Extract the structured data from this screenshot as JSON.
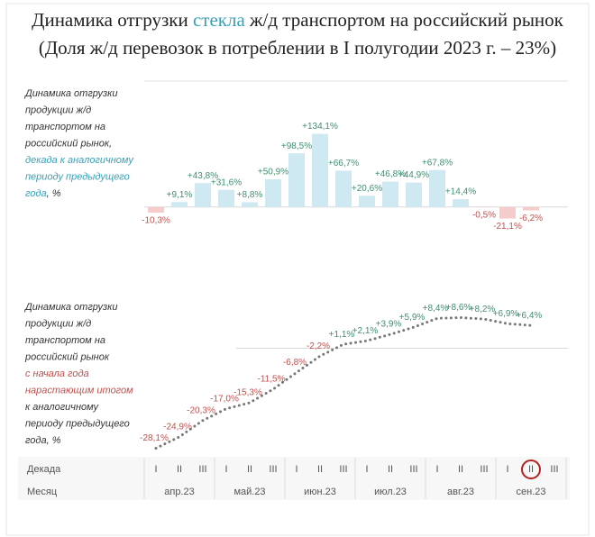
{
  "title_parts": [
    "Динамика отгрузки ",
    "стекла",
    " ж/д транспортом на российский рынок"
  ],
  "title_colors": [
    "#222222",
    "#3a9fb5",
    "#222222"
  ],
  "subtitle": "(Доля ж/д перевозок в потреблении в I полугодии 2023 г. – 23%)",
  "axis": {
    "decade_label": "Декада",
    "month_label": "Месяц",
    "decades": [
      "I",
      "II",
      "III",
      "I",
      "II",
      "III",
      "I",
      "II",
      "III",
      "I",
      "II",
      "III",
      "I",
      "II",
      "III",
      "I",
      "II",
      "III"
    ],
    "months": [
      "апр.23",
      "май.23",
      "июн.23",
      "июл.23",
      "авг.23",
      "сен.23"
    ],
    "highlighted_decade": 16,
    "highlight_color": "#b22222"
  },
  "chart_data": [
    {
      "type": "bar",
      "label_lines": [
        [
          {
            "text": "Динамика отгрузки",
            "color": "#333333"
          }
        ],
        [
          {
            "text": "продукции ж/д",
            "color": "#333333"
          }
        ],
        [
          {
            "text": "транспортом на",
            "color": "#333333"
          }
        ],
        [
          {
            "text": "российский рынок,",
            "color": "#333333"
          }
        ],
        [
          {
            "text": "декада к аналогичному",
            "color": "#3a9fb5"
          }
        ],
        [
          {
            "text": "периоду предыдущего",
            "color": "#3a9fb5"
          }
        ],
        [
          {
            "text": "года",
            "color": "#3a9fb5"
          },
          {
            "text": ", %",
            "color": "#333333"
          }
        ]
      ],
      "values": [
        -10.3,
        9.1,
        43.8,
        31.6,
        8.8,
        50.9,
        98.5,
        134.1,
        66.7,
        20.6,
        46.8,
        44.9,
        67.8,
        14.4,
        -0.5,
        -21.1,
        -6.2,
        null
      ],
      "value_labels": [
        "-10,3%",
        "+9,1%",
        "+43,8%",
        "+31,6%",
        "+8,8%",
        "+50,9%",
        "+98,5%",
        "+134,1%",
        "+66,7%",
        "+20,6%",
        "+46,8%",
        "+44,9%",
        "+67,8%",
        "+14,4%",
        "-0,5%",
        "-21,1%",
        "-6,2%",
        null
      ],
      "ylim": [
        -40,
        140
      ],
      "color": "#cfe9f3",
      "negative_color": "#f5cccc",
      "label_color": "#3f8f6f",
      "negative_label_color": "#c0504d"
    },
    {
      "type": "line",
      "label_lines": [
        [
          {
            "text": "Динамика отгрузки",
            "color": "#333333"
          }
        ],
        [
          {
            "text": "продукции ж/д",
            "color": "#333333"
          }
        ],
        [
          {
            "text": "транспортом на",
            "color": "#333333"
          }
        ],
        [
          {
            "text": "российский рынок",
            "color": "#333333"
          }
        ],
        [
          {
            "text": "с начала года",
            "color": "#c0504d"
          }
        ],
        [
          {
            "text": "нарастающим итогом",
            "color": "#c0504d"
          }
        ],
        [
          {
            "text": "к аналогичному",
            "color": "#333333"
          }
        ],
        [
          {
            "text": "периоду предыдущего",
            "color": "#333333"
          }
        ],
        [
          {
            "text": "года, %",
            "color": "#333333"
          }
        ]
      ],
      "values": [
        -28.1,
        -24.9,
        -20.3,
        -17.0,
        -15.3,
        -11.5,
        -6.8,
        -2.2,
        1.1,
        2.1,
        3.9,
        5.9,
        8.4,
        8.6,
        8.2,
        6.9,
        6.4,
        null
      ],
      "value_labels": [
        "-28,1%",
        "-24,9%",
        "-20,3%",
        "-17,0%",
        "-15,3%",
        "-11,5%",
        "-6,8%",
        "-2,2%",
        "+1,1%",
        "+2,1%",
        "+3,9%",
        "+5,9%",
        "+8,4%",
        "+8,6%",
        "+8,2%",
        "+6,9%",
        "+6,4%",
        null
      ],
      "ylim": [
        -30,
        10
      ],
      "color": "#777777",
      "label_color": "#3f8f6f",
      "negative_label_color": "#c0504d"
    }
  ]
}
